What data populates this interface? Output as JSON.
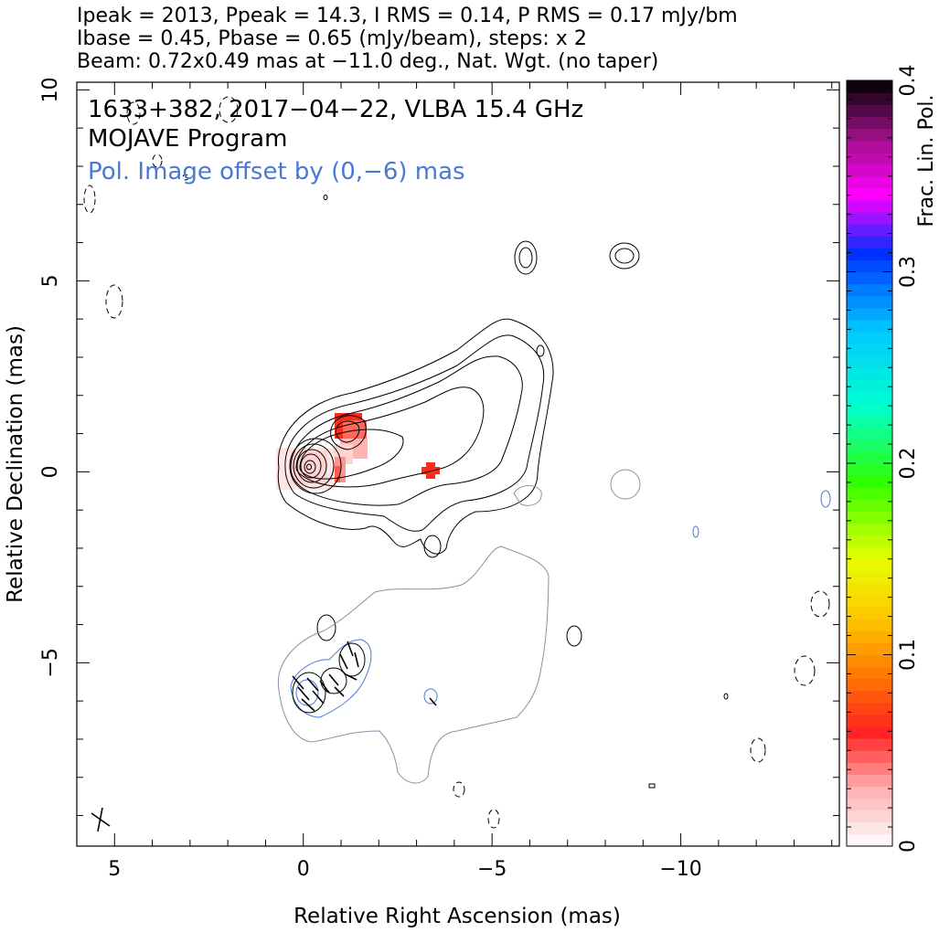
{
  "header": {
    "line1": "Ipeak = 2013, Ppeak = 14.3, I RMS = 0.14, P RMS = 0.17 mJy/bm",
    "line2": "Ibase = 0.45, Pbase = 0.65 (mJy/beam), steps: x 2",
    "line3": "Beam: 0.72x0.49 mas at −11.0 deg., Nat. Wgt. (no taper)"
  },
  "annotations": {
    "source": "1633+382, 2017−04−22, VLBA 15.4 GHz",
    "program": "MOJAVE Program",
    "pol_offset": "Pol. Image offset by (0,−6) mas",
    "pol_offset_color": "#4a78d2"
  },
  "colors": {
    "total_intensity_contour": "#000000",
    "pol_contour": "#8a8fa3",
    "pol_contour_blue": "#4a78d2",
    "frac_pol_red": "#ff2a1a"
  },
  "chart_data": {
    "type": "heatmap",
    "title": "1633+382, 2017−04−22, VLBA 15.4 GHz",
    "xlabel": "Relative Right Ascension (mas)",
    "ylabel": "Relative Declination (mas)",
    "xlim": [
      6.0,
      -14.2
    ],
    "ylim": [
      -9.8,
      10.2
    ],
    "xticks": [
      5,
      0,
      -5,
      -10
    ],
    "xtick_labels": [
      "5",
      "0",
      "−5",
      "−10"
    ],
    "yticks": [
      10,
      5,
      0,
      -5
    ],
    "ytick_labels": [
      "10",
      "5",
      "0",
      "−5"
    ],
    "grid": false,
    "peak_intensity_mJy_per_beam": 2013,
    "peak_polarization_mJy_per_beam": 14.3,
    "intensity_rms_mJy_per_beam": 0.14,
    "polarization_rms_mJy_per_beam": 0.17,
    "intensity_base_contour_mJy_per_beam": 0.45,
    "polarization_base_contour_mJy_per_beam": 0.65,
    "contour_step_factor": 2,
    "beam": {
      "major_mas": 0.72,
      "minor_mas": 0.49,
      "pa_deg": -11.0,
      "weighting": "Nat. Wgt. (no taper)"
    },
    "pol_offset_mas": [
      0,
      -6
    ],
    "core_position_mas": [
      0,
      0
    ],
    "frac_pol_patches": [
      {
        "ra_range": [
          -0.5,
          -1.4
        ],
        "dec_range": [
          -0.3,
          1.5
        ],
        "frac_pol": 0.04
      },
      {
        "ra": -3.2,
        "dec": 0.05,
        "frac_pol": 0.05
      }
    ],
    "colorbar": {
      "label": "Frac. Lin. Pol.",
      "range": [
        0,
        0.4
      ],
      "ticks": [
        0,
        0.1,
        0.2,
        0.3,
        0.4
      ],
      "tick_labels": [
        "0",
        "0.1",
        "0.2",
        "0.3",
        "0.4"
      ],
      "stops": [
        [
          0.0,
          "#ffffff"
        ],
        [
          0.03,
          "#ffb0b0"
        ],
        [
          0.06,
          "#ff2020"
        ],
        [
          0.09,
          "#ff7a00"
        ],
        [
          0.12,
          "#ffc800"
        ],
        [
          0.15,
          "#e8ff00"
        ],
        [
          0.19,
          "#30ff00"
        ],
        [
          0.23,
          "#00ffd0"
        ],
        [
          0.27,
          "#00c8ff"
        ],
        [
          0.31,
          "#0030ff"
        ],
        [
          0.34,
          "#ff00ff"
        ],
        [
          0.37,
          "#a0108a"
        ],
        [
          0.4,
          "#000000"
        ]
      ]
    }
  }
}
